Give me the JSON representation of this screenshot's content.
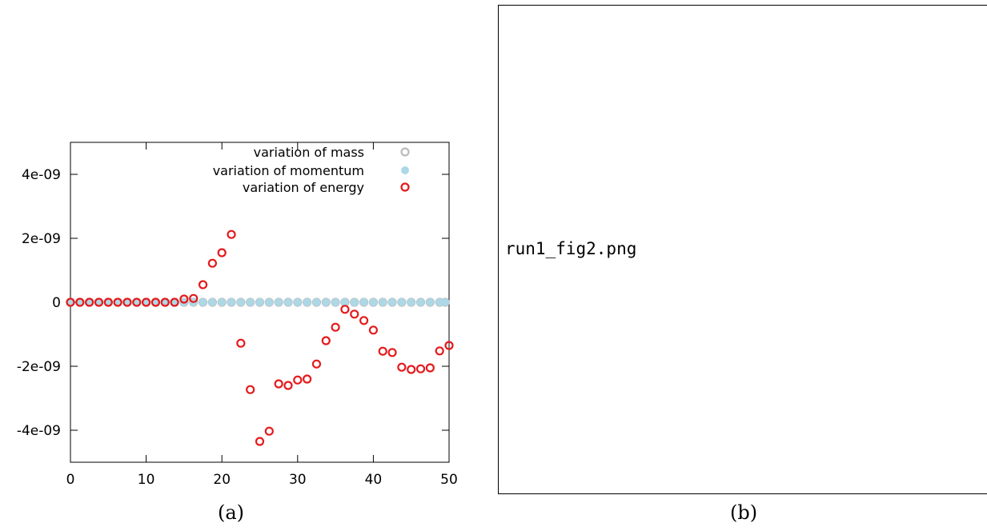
{
  "chart_data": {
    "type": "scatter",
    "xlim": [
      0,
      50
    ],
    "ylim": [
      -5e-09,
      5e-09
    ],
    "x_ticks": [
      0,
      10,
      20,
      30,
      40,
      50
    ],
    "x_tick_labels": [
      "0",
      "10",
      "20",
      "30",
      "40",
      "50"
    ],
    "y_ticks": [
      -4e-09,
      -2e-09,
      0,
      2e-09,
      4e-09
    ],
    "y_tick_labels": [
      "-4e-09",
      "-2e-09",
      "0",
      "2e-09",
      "4e-09"
    ],
    "grid": false,
    "legend_position": "top",
    "series": [
      {
        "name": "variation of mass",
        "marker": "open-circle",
        "color": "#bbbbbb",
        "x": [
          0,
          1.25,
          2.5,
          3.75,
          5,
          6.25,
          7.5,
          8.75,
          10,
          11.25,
          12.5,
          13.75,
          15,
          16.25,
          17.5,
          18.75,
          20,
          21.25,
          22.5,
          23.75,
          25,
          26.25,
          27.5,
          28.75,
          30,
          31.25,
          32.5,
          33.75,
          35,
          36.25,
          37.5,
          38.75,
          40,
          41.25,
          42.5,
          43.75,
          45,
          46.25,
          47.5,
          48.75,
          49.5
        ],
        "y": [
          0,
          0,
          0,
          0,
          0,
          0,
          0,
          0,
          0,
          0,
          0,
          0,
          0,
          0,
          0,
          0,
          0,
          0,
          0,
          0,
          0,
          0,
          0,
          0,
          0,
          0,
          0,
          0,
          0,
          0,
          0,
          0,
          0,
          0,
          0,
          0,
          0,
          0,
          0,
          0,
          0
        ]
      },
      {
        "name": "variation of momentum",
        "marker": "filled-circle",
        "color": "#add8e6",
        "x": [
          0,
          1.25,
          2.5,
          3.75,
          5,
          6.25,
          7.5,
          8.75,
          10,
          11.25,
          12.5,
          13.75,
          15,
          16.25,
          17.5,
          18.75,
          20,
          21.25,
          22.5,
          23.75,
          25,
          26.25,
          27.5,
          28.75,
          30,
          31.25,
          32.5,
          33.75,
          35,
          36.25,
          37.5,
          38.75,
          40,
          41.25,
          42.5,
          43.75,
          45,
          46.25,
          47.5,
          48.75,
          49.5
        ],
        "y": [
          0,
          0,
          0,
          0,
          0,
          0,
          0,
          0,
          0,
          0,
          0,
          0,
          0,
          0,
          0,
          0,
          0,
          0,
          0,
          0,
          0,
          0,
          0,
          0,
          0,
          0,
          0,
          0,
          0,
          0,
          0,
          0,
          0,
          0,
          0,
          0,
          0,
          0,
          0,
          0,
          0
        ]
      },
      {
        "name": "variation of energy",
        "marker": "open-circle",
        "color": "#e41a1c",
        "x": [
          0,
          1.25,
          2.5,
          3.75,
          5,
          6.25,
          7.5,
          8.75,
          10,
          11.25,
          12.5,
          13.75,
          15,
          16.25,
          17.5,
          18.75,
          20,
          21.25,
          22.5,
          23.75,
          25,
          26.25,
          27.5,
          28.75,
          30,
          31.25,
          32.5,
          33.75,
          35,
          36.25,
          37.5,
          38.75,
          40,
          41.25,
          42.5,
          43.75,
          45,
          46.25,
          47.5,
          48.75,
          50
        ],
        "y": [
          0,
          0,
          0,
          0,
          0,
          0,
          0,
          0,
          0,
          0,
          0,
          0,
          1e-10,
          1.2e-10,
          5.5e-10,
          1.22e-09,
          1.55e-09,
          2.12e-09,
          -1.28e-09,
          -2.73e-09,
          -4.35e-09,
          -4.03e-09,
          -2.55e-09,
          -2.6e-09,
          -2.43e-09,
          -2.4e-09,
          -1.93e-09,
          -1.2e-09,
          -7.8e-10,
          -2.2e-10,
          -3.7e-10,
          -5.7e-10,
          -8.7e-10,
          -1.53e-09,
          -1.57e-09,
          -2.03e-09,
          -2.1e-09,
          -2.08e-09,
          -2.05e-09,
          -1.52e-09,
          -1.35e-09
        ]
      }
    ]
  },
  "captions": {
    "left": "(a)",
    "right": "(b)"
  },
  "placeholder": {
    "filename": "run1_fig2.png"
  }
}
